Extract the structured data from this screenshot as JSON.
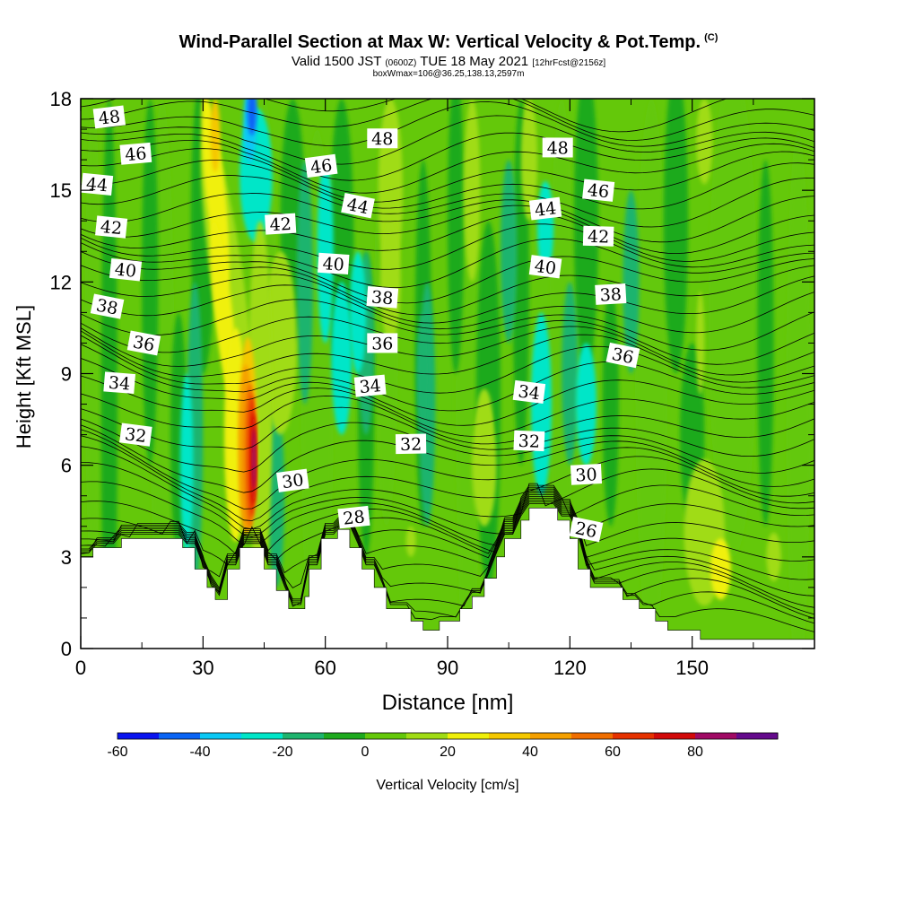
{
  "header": {
    "title": "Wind-Parallel Section at Max W: Vertical Velocity & Pot.Temp.",
    "title_suffix": "(C)",
    "valid_prefix": "Valid 1500 JST",
    "valid_utc": "(0600Z)",
    "valid_date": "TUE 18 May 2021",
    "forecast": "[12hrFcst@2156z]",
    "box_info": "boxWmax=106@36.25,138.13,2597m"
  },
  "chart_data": {
    "type": "heatmap",
    "title": "Wind-Parallel Section at Max W: Vertical Velocity & Pot.Temp.",
    "xlabel": "Distance [nm]",
    "ylabel": "Height [Kft MSL]",
    "xlim": [
      0,
      180
    ],
    "ylim": [
      0,
      18
    ],
    "x_ticks": [
      0,
      30,
      60,
      90,
      120,
      150
    ],
    "y_ticks": [
      0,
      3,
      6,
      9,
      12,
      15,
      18
    ],
    "colorbar": {
      "label": "Vertical Velocity [cm/s]",
      "ticks": [
        -60,
        -40,
        -20,
        0,
        20,
        40,
        60,
        80
      ],
      "levels": [
        -60,
        -50,
        -40,
        -30,
        -20,
        -10,
        0,
        10,
        20,
        30,
        40,
        50,
        60,
        70,
        80,
        90
      ],
      "colors": [
        "#0a14f0",
        "#0a64f5",
        "#0ac8f5",
        "#00e6c8",
        "#1eb46e",
        "#1eaa1e",
        "#64c80a",
        "#a0dc14",
        "#f0f00a",
        "#f5c800",
        "#f5a000",
        "#f06e00",
        "#e63200",
        "#d20a0a",
        "#a00a64",
        "#640a8c"
      ]
    },
    "theta_labels": [
      {
        "v": "48",
        "x": 7,
        "y": 17.4
      },
      {
        "v": "46",
        "x": 13.5,
        "y": 16.2
      },
      {
        "v": "44",
        "x": 4,
        "y": 15.2
      },
      {
        "v": "42",
        "x": 7.5,
        "y": 13.8
      },
      {
        "v": "40",
        "x": 11,
        "y": 12.4
      },
      {
        "v": "38",
        "x": 6.5,
        "y": 11.2
      },
      {
        "v": "36",
        "x": 15.5,
        "y": 10.0
      },
      {
        "v": "34",
        "x": 9.5,
        "y": 8.7
      },
      {
        "v": "32",
        "x": 13.5,
        "y": 7.0
      },
      {
        "v": "48",
        "x": 74,
        "y": 16.7
      },
      {
        "v": "46",
        "x": 59,
        "y": 15.8
      },
      {
        "v": "44",
        "x": 68,
        "y": 14.5
      },
      {
        "v": "42",
        "x": 49,
        "y": 13.9
      },
      {
        "v": "40",
        "x": 62,
        "y": 12.6
      },
      {
        "v": "38",
        "x": 74,
        "y": 11.5
      },
      {
        "v": "36",
        "x": 74,
        "y": 10.0
      },
      {
        "v": "34",
        "x": 71,
        "y": 8.6
      },
      {
        "v": "32",
        "x": 81,
        "y": 6.7
      },
      {
        "v": "30",
        "x": 52,
        "y": 5.5
      },
      {
        "v": "28",
        "x": 67,
        "y": 4.3
      },
      {
        "v": "48",
        "x": 117,
        "y": 16.4
      },
      {
        "v": "46",
        "x": 127,
        "y": 15.0
      },
      {
        "v": "44",
        "x": 114,
        "y": 14.4
      },
      {
        "v": "42",
        "x": 127,
        "y": 13.5
      },
      {
        "v": "40",
        "x": 114,
        "y": 12.5
      },
      {
        "v": "38",
        "x": 130,
        "y": 11.6
      },
      {
        "v": "36",
        "x": 133,
        "y": 9.6
      },
      {
        "v": "34",
        "x": 110,
        "y": 8.4
      },
      {
        "v": "32",
        "x": 110,
        "y": 6.8
      },
      {
        "v": "30",
        "x": 124,
        "y": 5.7
      },
      {
        "v": "26",
        "x": 124,
        "y": 3.9
      }
    ],
    "terrain_profile": [
      [
        0,
        3.0
      ],
      [
        3,
        3.0
      ],
      [
        3,
        3.3
      ],
      [
        10,
        3.3
      ],
      [
        10,
        3.6
      ],
      [
        25,
        3.6
      ],
      [
        25,
        3.3
      ],
      [
        28,
        3.3
      ],
      [
        28,
        2.6
      ],
      [
        31,
        2.6
      ],
      [
        31,
        2.0
      ],
      [
        33,
        2.0
      ],
      [
        33,
        1.6
      ],
      [
        36,
        1.6
      ],
      [
        36,
        2.6
      ],
      [
        39,
        2.6
      ],
      [
        39,
        3.3
      ],
      [
        45,
        3.3
      ],
      [
        45,
        2.6
      ],
      [
        48,
        2.6
      ],
      [
        48,
        1.9
      ],
      [
        51,
        1.9
      ],
      [
        51,
        1.3
      ],
      [
        55,
        1.3
      ],
      [
        55,
        1.7
      ],
      [
        56,
        1.7
      ],
      [
        56,
        2.6
      ],
      [
        59,
        2.6
      ],
      [
        59,
        3.6
      ],
      [
        63,
        3.6
      ],
      [
        63,
        3.9
      ],
      [
        66,
        3.9
      ],
      [
        66,
        3.3
      ],
      [
        69,
        3.3
      ],
      [
        69,
        2.6
      ],
      [
        72,
        2.6
      ],
      [
        72,
        2.0
      ],
      [
        75,
        2.0
      ],
      [
        75,
        1.3
      ],
      [
        81,
        1.3
      ],
      [
        81,
        0.9
      ],
      [
        84,
        0.9
      ],
      [
        84,
        0.6
      ],
      [
        88,
        0.6
      ],
      [
        88,
        0.9
      ],
      [
        93,
        0.9
      ],
      [
        93,
        1.3
      ],
      [
        96,
        1.3
      ],
      [
        96,
        1.7
      ],
      [
        99,
        1.7
      ],
      [
        99,
        2.3
      ],
      [
        102,
        2.3
      ],
      [
        102,
        3.0
      ],
      [
        104,
        3.0
      ],
      [
        104,
        3.6
      ],
      [
        108,
        3.6
      ],
      [
        108,
        4.2
      ],
      [
        110,
        4.2
      ],
      [
        110,
        4.6
      ],
      [
        117,
        4.6
      ],
      [
        117,
        4.2
      ],
      [
        120,
        4.2
      ],
      [
        120,
        3.6
      ],
      [
        122,
        3.6
      ],
      [
        122,
        2.6
      ],
      [
        125,
        2.6
      ],
      [
        125,
        2.0
      ],
      [
        133,
        2.0
      ],
      [
        133,
        1.6
      ],
      [
        137,
        1.6
      ],
      [
        137,
        1.3
      ],
      [
        141,
        1.3
      ],
      [
        141,
        0.9
      ],
      [
        144,
        0.9
      ],
      [
        144,
        0.6
      ],
      [
        152,
        0.6
      ],
      [
        152,
        0.3
      ],
      [
        180,
        0.3
      ]
    ]
  }
}
